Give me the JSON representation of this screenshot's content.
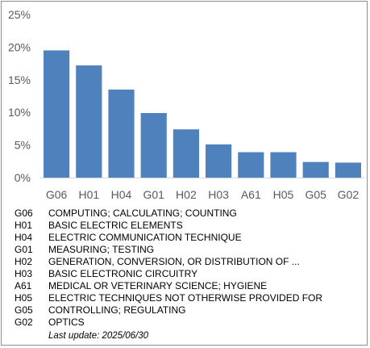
{
  "chart_data": {
    "type": "bar",
    "categories": [
      "G06",
      "H01",
      "H04",
      "G01",
      "H02",
      "H03",
      "A61",
      "H05",
      "G05",
      "G02"
    ],
    "values": [
      19.5,
      17.2,
      13.5,
      9.9,
      7.4,
      5.1,
      3.9,
      3.9,
      2.4,
      2.3
    ],
    "ylim": [
      0,
      25
    ],
    "yticks": [
      0,
      5,
      10,
      15,
      20,
      25
    ],
    "ytick_format": "percent",
    "bar_color": "#4f81bd",
    "grid": false,
    "title": "",
    "xlabel": "",
    "ylabel": ""
  },
  "legend": [
    {
      "code": "G06",
      "description": "COMPUTING; CALCULATING; COUNTING"
    },
    {
      "code": "H01",
      "description": "BASIC ELECTRIC ELEMENTS"
    },
    {
      "code": "H04",
      "description": "ELECTRIC COMMUNICATION TECHNIQUE"
    },
    {
      "code": "G01",
      "description": "MEASURING; TESTING"
    },
    {
      "code": "H02",
      "description": "GENERATION, CONVERSION, OR DISTRIBUTION OF ..."
    },
    {
      "code": "H03",
      "description": "BASIC ELECTRONIC CIRCUITRY"
    },
    {
      "code": "A61",
      "description": "MEDICAL OR VETERINARY SCIENCE; HYGIENE"
    },
    {
      "code": "H05",
      "description": "ELECTRIC TECHNIQUES NOT OTHERWISE PROVIDED FOR"
    },
    {
      "code": "G05",
      "description": "CONTROLLING; REGULATING"
    },
    {
      "code": "G02",
      "description": "OPTICS"
    }
  ],
  "footer": {
    "last_update": "Last update:  2025/06/30"
  }
}
